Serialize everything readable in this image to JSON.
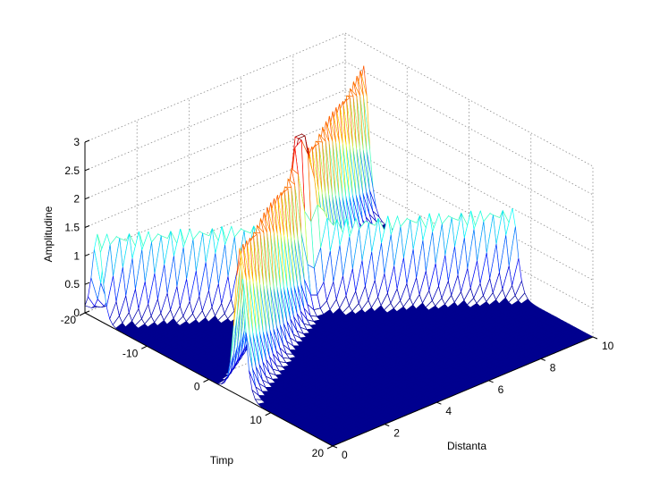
{
  "chart_data": {
    "type": "surface",
    "title": "",
    "xlabel": "Timp",
    "ylabel": "Distanta",
    "zlabel": "Amplitudine",
    "xlim": [
      -20,
      20
    ],
    "ylim": [
      0,
      10
    ],
    "zlim": [
      0,
      3
    ],
    "x_ticks": [
      "-20",
      "-10",
      "0",
      "10",
      "20"
    ],
    "y_ticks": [
      "0",
      "2",
      "4",
      "6",
      "8",
      "10"
    ],
    "z_ticks": [
      "0",
      "0.5",
      "1",
      "1.5",
      "2",
      "2.5",
      "3"
    ],
    "grid": true,
    "colormap": "jet",
    "floor_color": "#00008f",
    "series": [
      {
        "amplitude": 1.5,
        "speed": 2.5,
        "x_at_distance_0": -18.0
      },
      {
        "amplitude": 2.6,
        "speed": -2.2,
        "x_at_distance_0": 5.0
      }
    ],
    "peak": {
      "timp": -4.7,
      "distanta": 5.0,
      "amplitudine": 2.9
    }
  }
}
